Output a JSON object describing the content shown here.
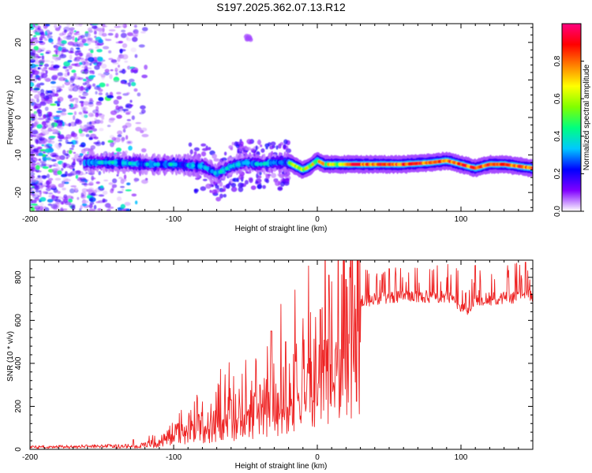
{
  "title": "S197.2025.362.07.13.R12",
  "chart_data": [
    {
      "type": "heatmap",
      "name": "spectrogram",
      "xlabel": "Height of straight line (km)",
      "ylabel": "Frequency (Hz)",
      "xlim": [
        -200,
        150
      ],
      "ylim": [
        -25,
        25
      ],
      "xticks": [
        -200,
        -100,
        0,
        100
      ],
      "yticks": [
        -20,
        -10,
        0,
        10,
        20
      ],
      "colorbar": {
        "label": "Normalized spectral amplitude",
        "range": [
          0,
          1
        ],
        "ticks": [
          0.0,
          0.2,
          0.4,
          0.6,
          0.8
        ],
        "colormap": [
          "#ffffff",
          "#8000ff",
          "#0000ff",
          "#00c8ff",
          "#00ff80",
          "#80ff00",
          "#ffff00",
          "#ff8000",
          "#ff0000",
          "#ff0080"
        ]
      },
      "ridge": {
        "description": "main spectral ridge",
        "x": [
          -160,
          -140,
          -120,
          -100,
          -80,
          -70,
          -60,
          -50,
          -40,
          -30,
          -20,
          -10,
          -5,
          0,
          5,
          10,
          20,
          40,
          60,
          80,
          90,
          100,
          110,
          120,
          130,
          150
        ],
        "y": [
          -12,
          -12,
          -12.5,
          -12.5,
          -13,
          -15,
          -13,
          -12,
          -12.5,
          -12,
          -12,
          -14,
          -13,
          -11.5,
          -12.5,
          -12.5,
          -12.5,
          -12.5,
          -12.5,
          -12,
          -11.5,
          -12.5,
          -13.5,
          -12.5,
          -12.5,
          -13.5
        ]
      }
    },
    {
      "type": "line",
      "name": "snr",
      "xlabel": "Height of straight line (km)",
      "ylabel": "SNR (10 * v/v)",
      "xlim": [
        -200,
        150
      ],
      "ylim": [
        0,
        880
      ],
      "xticks": [
        -200,
        -100,
        0,
        100
      ],
      "yticks": [
        0,
        200,
        400,
        600,
        800
      ],
      "color": "#ee2222",
      "envelope": {
        "x": [
          -200,
          -150,
          -130,
          -120,
          -110,
          -100,
          -90,
          -80,
          -70,
          -60,
          -50,
          -40,
          -30,
          -20,
          -15,
          -10,
          -5,
          0,
          5,
          10,
          15,
          20,
          25,
          30,
          40,
          50,
          60,
          70,
          80,
          90,
          95,
          100,
          105,
          110,
          120,
          130,
          140,
          150
        ],
        "y": [
          15,
          20,
          22,
          28,
          40,
          80,
          110,
          130,
          160,
          190,
          210,
          230,
          280,
          330,
          350,
          360,
          390,
          460,
          540,
          580,
          590,
          610,
          650,
          680,
          690,
          700,
          705,
          705,
          700,
          700,
          695,
          640,
          640,
          680,
          690,
          695,
          700,
          705
        ]
      },
      "peaks": [
        {
          "x": -128,
          "y": 45
        },
        {
          "x": -97,
          "y": 120
        },
        {
          "x": -60,
          "y": 230
        },
        {
          "x": -40,
          "y": 300
        },
        {
          "x": -32,
          "y": 550
        },
        {
          "x": -22,
          "y": 500
        },
        {
          "x": -15,
          "y": 410
        },
        {
          "x": 2,
          "y": 650
        },
        {
          "x": 8,
          "y": 810
        },
        {
          "x": 20,
          "y": 790
        },
        {
          "x": 50,
          "y": 840
        },
        {
          "x": 110,
          "y": 855
        },
        {
          "x": 145,
          "y": 870
        }
      ]
    }
  ]
}
